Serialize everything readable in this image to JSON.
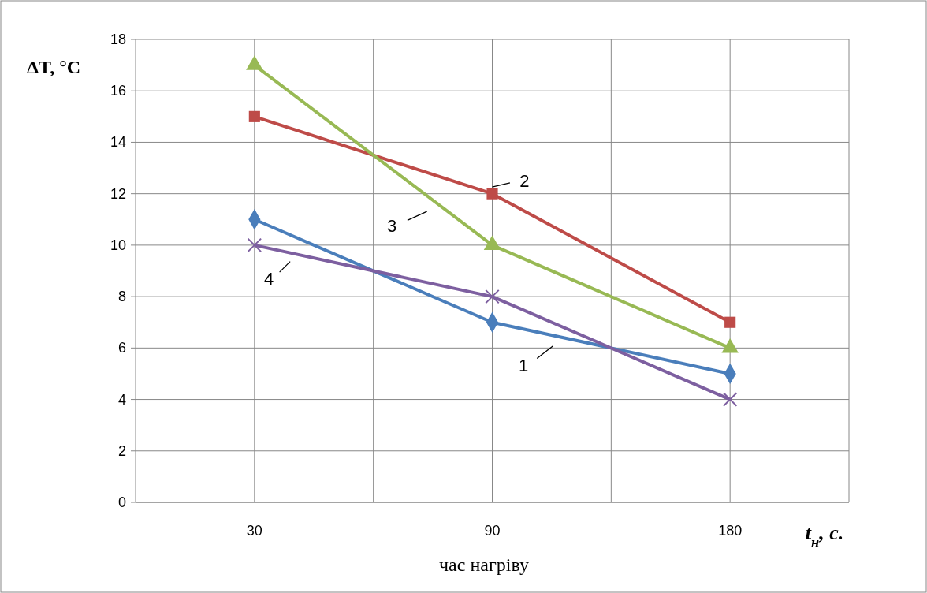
{
  "chart_data": {
    "type": "line",
    "categories": [
      "30",
      "90",
      "180"
    ],
    "xlabel": "час нагріву",
    "ylabel": "ΔT, °C",
    "annotations": [
      "t$_{н}$, с."
    ],
    "ylim": [
      0,
      18
    ],
    "yticks": [
      0,
      2,
      4,
      6,
      8,
      10,
      12,
      14,
      16,
      18
    ],
    "grid": true,
    "line_style": "solid",
    "series": [
      {
        "name": "1",
        "color": "#4a7ebb",
        "marker": "diamond",
        "values": [
          11,
          7,
          5
        ]
      },
      {
        "name": "2",
        "color": "#be4b48",
        "marker": "square",
        "values": [
          15,
          12,
          7
        ]
      },
      {
        "name": "3",
        "color": "#98b954",
        "marker": "triangle",
        "values": [
          17,
          10,
          6
        ]
      },
      {
        "name": "4",
        "color": "#7d5fa0",
        "marker": "cross",
        "values": [
          10,
          8,
          4
        ]
      }
    ]
  }
}
